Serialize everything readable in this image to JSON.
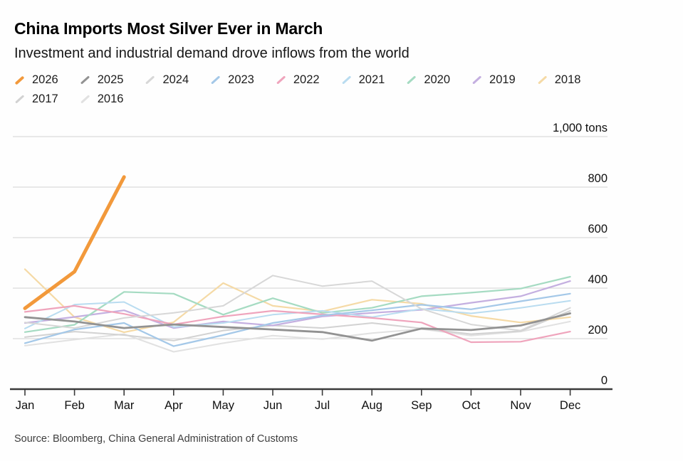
{
  "header": {
    "title": "China Imports Most Silver Ever in March",
    "subtitle": "Investment and industrial demand drove inflows from the world"
  },
  "source_note": "Source: Bloomberg, China General Administration of Customs",
  "chart_data": {
    "type": "line",
    "title": "China Imports Most Silver Ever in March",
    "subtitle": "Investment and industrial demand drove inflows from the world",
    "unit_label": "1,000 tons",
    "ylabel": "1,000 tons",
    "ylim": [
      0,
      1050
    ],
    "y_ticks": [
      0,
      200,
      400,
      600,
      800,
      1000
    ],
    "grid": "horizontal",
    "legend_position": "top",
    "x_categories": [
      "Jan",
      "Feb",
      "Mar",
      "Apr",
      "May",
      "Jun",
      "Jul",
      "Aug",
      "Sep",
      "Oct",
      "Nov",
      "Dec"
    ],
    "series": [
      {
        "name": "2026",
        "color": "#F2993B",
        "line_width": 5,
        "values": [
          320,
          465,
          840
        ]
      },
      {
        "name": "2025",
        "color": "#929292",
        "line_width": 2.8,
        "values": [
          285,
          268,
          242,
          256,
          246,
          236,
          226,
          192,
          240,
          234,
          252,
          300
        ]
      },
      {
        "name": "2024",
        "color": "#D7D7D7",
        "line_width": 2,
        "values": [
          264,
          242,
          282,
          302,
          330,
          450,
          408,
          428,
          318,
          256,
          232,
          322
        ]
      },
      {
        "name": "2023",
        "color": "#A4C8E8",
        "line_width": 2.2,
        "values": [
          182,
          236,
          262,
          170,
          214,
          262,
          292,
          312,
          334,
          316,
          348,
          378
        ]
      },
      {
        "name": "2022",
        "color": "#EFA4BC",
        "line_width": 2.2,
        "values": [
          306,
          330,
          298,
          256,
          288,
          310,
          296,
          282,
          264,
          186,
          188,
          228
        ]
      },
      {
        "name": "2021",
        "color": "#B9DCF0",
        "line_width": 2,
        "values": [
          240,
          335,
          345,
          246,
          262,
          295,
          310,
          285,
          318,
          300,
          322,
          350
        ]
      },
      {
        "name": "2020",
        "color": "#A5DBC2",
        "line_width": 2.2,
        "values": [
          226,
          255,
          385,
          378,
          295,
          360,
          302,
          322,
          368,
          382,
          398,
          445
        ]
      },
      {
        "name": "2019",
        "color": "#C4AFE0",
        "line_width": 2.2,
        "values": [
          262,
          286,
          312,
          242,
          268,
          252,
          288,
          302,
          314,
          342,
          368,
          428
        ]
      },
      {
        "name": "2018",
        "color": "#F5DAA6",
        "line_width": 2.2,
        "values": [
          475,
          285,
          225,
          265,
          420,
          330,
          308,
          354,
          338,
          290,
          264,
          285
        ]
      },
      {
        "name": "2017",
        "color": "#D2D2D2",
        "line_width": 2,
        "values": [
          206,
          228,
          214,
          192,
          232,
          252,
          242,
          262,
          240,
          218,
          230,
          310
        ]
      },
      {
        "name": "2016",
        "color": "#E1E1E1",
        "line_width": 2,
        "values": [
          172,
          196,
          218,
          148,
          182,
          212,
          198,
          222,
          238,
          212,
          228,
          268
        ]
      }
    ]
  }
}
